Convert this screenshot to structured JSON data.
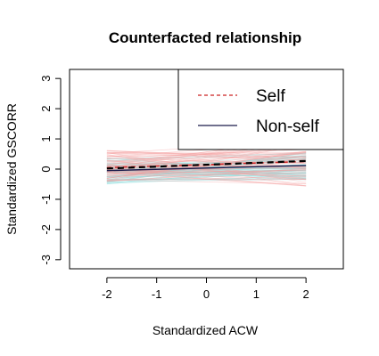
{
  "chart_data": {
    "type": "line",
    "title": "Counterfacted relationship",
    "xlabel": "Standardized ACW",
    "ylabel": "Standardized GSCORR",
    "xlim": [
      -2.75,
      2.75
    ],
    "ylim": [
      -3.3,
      3.3
    ],
    "x_ticks": [
      -2,
      -1,
      0,
      1,
      2
    ],
    "y_ticks": [
      -3,
      -2,
      -1,
      0,
      1,
      2,
      3
    ],
    "x": [
      -2,
      2
    ],
    "series": [
      {
        "name": "Self",
        "values": [
          0.05,
          0.25
        ],
        "color": "#cc2222",
        "dash": "dashed"
      },
      {
        "name": "Non-self",
        "values": [
          -0.05,
          0.12
        ],
        "color": "#1a1a4a",
        "dash": "solid"
      }
    ],
    "overall_line": {
      "values": [
        0.02,
        0.27
      ],
      "color": "#000000",
      "dash": "dashed"
    },
    "colors": {
      "self_band": "#f4a0a0",
      "nonself_band": "#8fdede"
    },
    "legend": {
      "position": "top-right",
      "entries": [
        {
          "label": "Self",
          "color": "#cc2222",
          "dash": "dashed"
        },
        {
          "label": "Non-self",
          "color": "#1a1a4a",
          "dash": "solid"
        }
      ]
    },
    "grid": false
  }
}
